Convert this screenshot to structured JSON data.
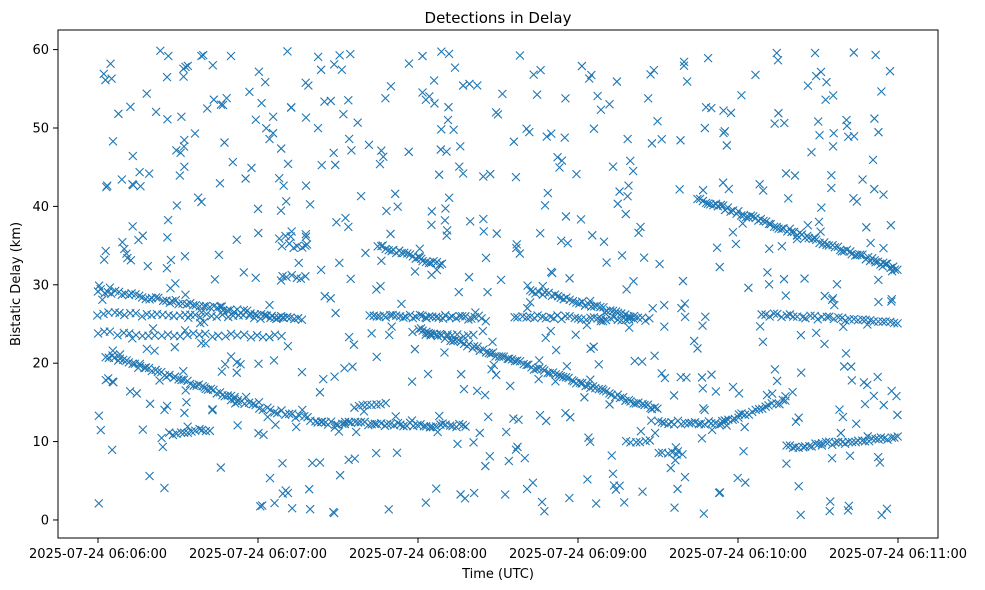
{
  "chart_data": {
    "type": "scatter",
    "title": "Detections in Delay",
    "xlabel": "Time (UTC)",
    "ylabel": "Bistatic Delay (km)",
    "x_unit": "minutes after 2025-07-24 06:06:00",
    "xlim": [
      -0.25,
      5.25
    ],
    "ylim": [
      -2.3,
      62.5
    ],
    "grid": false,
    "marker": "x",
    "color": "#1f77b4",
    "x_ticks": [
      {
        "value": 0,
        "label": "2025-07-24 06:06:00"
      },
      {
        "value": 1,
        "label": "2025-07-24 06:07:00"
      },
      {
        "value": 2,
        "label": "2025-07-24 06:08:00"
      },
      {
        "value": 3,
        "label": "2025-07-24 06:09:00"
      },
      {
        "value": 4,
        "label": "2025-07-24 06:10:00"
      },
      {
        "value": 5,
        "label": "2025-07-24 06:11:00"
      }
    ],
    "y_ticks": [
      {
        "value": 0,
        "label": "0"
      },
      {
        "value": 10,
        "label": "10"
      },
      {
        "value": 20,
        "label": "20"
      },
      {
        "value": 30,
        "label": "30"
      },
      {
        "value": 40,
        "label": "40"
      },
      {
        "value": 50,
        "label": "50"
      },
      {
        "value": 60,
        "label": "60"
      }
    ],
    "tracks": [
      {
        "x0": 0.0,
        "y0": 29.3,
        "x1": 1.25,
        "y1": 25.5,
        "count": 60
      },
      {
        "x0": 0.0,
        "y0": 26.3,
        "x1": 1.15,
        "y1": 25.8,
        "count": 35
      },
      {
        "x0": 0.0,
        "y0": 23.8,
        "x1": 1.15,
        "y1": 23.5,
        "count": 30
      },
      {
        "x0": 0.05,
        "y0": 21.0,
        "x1": 0.85,
        "y1": 15.6,
        "count": 45
      },
      {
        "x0": 0.85,
        "y0": 15.2,
        "x1": 1.4,
        "y1": 12.5,
        "count": 25
      },
      {
        "x0": 1.4,
        "y0": 12.4,
        "x1": 2.3,
        "y1": 12.0,
        "count": 45
      },
      {
        "x0": 1.75,
        "y0": 35.0,
        "x1": 2.15,
        "y1": 32.5,
        "count": 25
      },
      {
        "x0": 1.7,
        "y0": 26.0,
        "x1": 2.4,
        "y1": 25.8,
        "count": 35
      },
      {
        "x0": 2.0,
        "y0": 24.5,
        "x1": 3.5,
        "y1": 14.0,
        "count": 90
      },
      {
        "x0": 2.7,
        "y0": 29.3,
        "x1": 3.35,
        "y1": 26.0,
        "count": 35
      },
      {
        "x0": 2.6,
        "y0": 26.0,
        "x1": 3.45,
        "y1": 25.6,
        "count": 35
      },
      {
        "x0": 3.5,
        "y0": 12.5,
        "x1": 3.9,
        "y1": 12.3,
        "count": 20
      },
      {
        "x0": 3.9,
        "y0": 12.5,
        "x1": 4.3,
        "y1": 15.3,
        "count": 20
      },
      {
        "x0": 3.75,
        "y0": 41.0,
        "x1": 5.0,
        "y1": 32.0,
        "count": 80
      },
      {
        "x0": 4.15,
        "y0": 26.2,
        "x1": 5.0,
        "y1": 25.3,
        "count": 35
      },
      {
        "x0": 4.3,
        "y0": 9.3,
        "x1": 5.0,
        "y1": 10.5,
        "count": 35
      },
      {
        "x0": 0.45,
        "y0": 11.0,
        "x1": 0.7,
        "y1": 11.5,
        "count": 12
      },
      {
        "x0": 1.6,
        "y0": 14.5,
        "x1": 1.8,
        "y1": 14.8,
        "count": 8
      },
      {
        "x0": 2.05,
        "y0": 23.5,
        "x1": 2.35,
        "y1": 23.5,
        "count": 10
      },
      {
        "x0": 3.3,
        "y0": 10.0,
        "x1": 3.45,
        "y1": 10.0,
        "count": 6
      },
      {
        "x0": 3.5,
        "y0": 8.5,
        "x1": 3.65,
        "y1": 8.5,
        "count": 6
      },
      {
        "x0": 1.2,
        "y0": 35.0,
        "x1": 1.3,
        "y1": 34.8,
        "count": 5
      },
      {
        "x0": 1.15,
        "y0": 31.0,
        "x1": 1.3,
        "y1": 31.0,
        "count": 6
      }
    ],
    "clutter": {
      "count": 650,
      "x_range": [
        0.0,
        5.0
      ],
      "y_range": [
        0.5,
        60.0
      ]
    }
  }
}
